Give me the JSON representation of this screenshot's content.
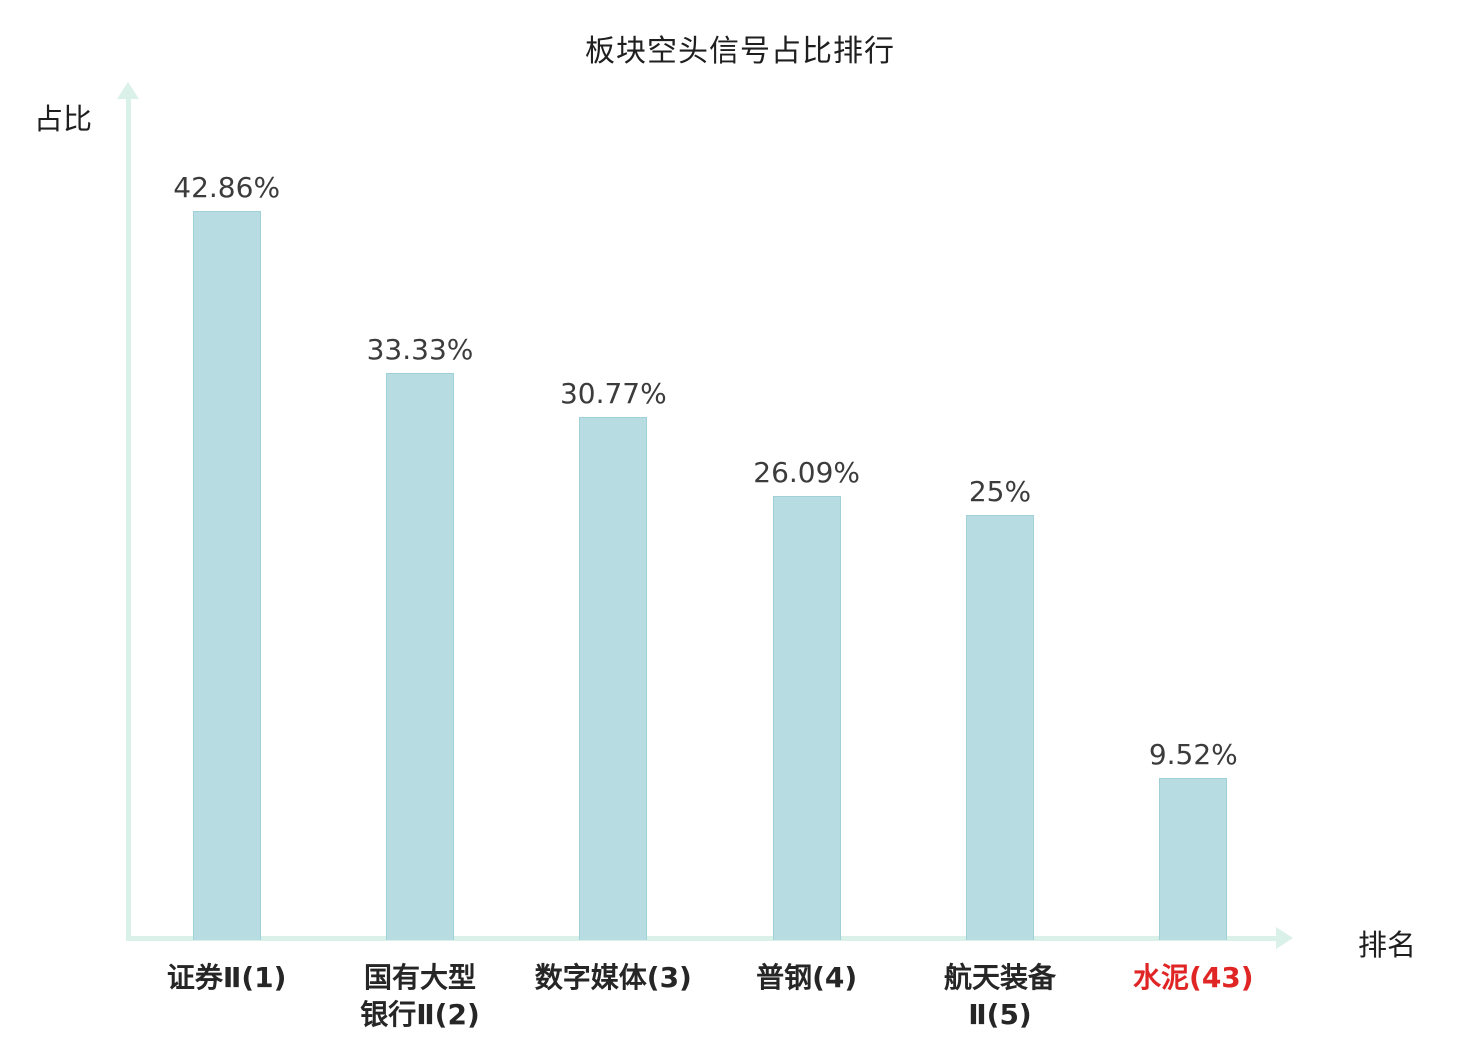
{
  "chart_data": {
    "type": "bar",
    "title": "板块空头信号占比排行",
    "xlabel": "排名",
    "ylabel": "占比",
    "categories": [
      "证券Ⅱ(1)",
      "国有大型\n银行Ⅱ(2)",
      "数字媒体(3)",
      "普钢(4)",
      "航天装备\nⅡ(5)",
      "水泥(43)"
    ],
    "values": [
      42.86,
      33.33,
      30.77,
      26.09,
      25,
      9.52
    ],
    "value_labels": [
      "42.86%",
      "33.33%",
      "30.77%",
      "26.09%",
      "25%",
      "9.52%"
    ],
    "highlight_index": 5,
    "ylim": [
      0,
      50
    ],
    "grid": "off",
    "legend": "none",
    "colors": {
      "bar": "#b7dde2",
      "bar_border": "#a0d1d8",
      "axis": "#daf1ea",
      "value_label": "#3c3c3c",
      "category_label": "#262626",
      "highlight": "#e02525"
    }
  }
}
